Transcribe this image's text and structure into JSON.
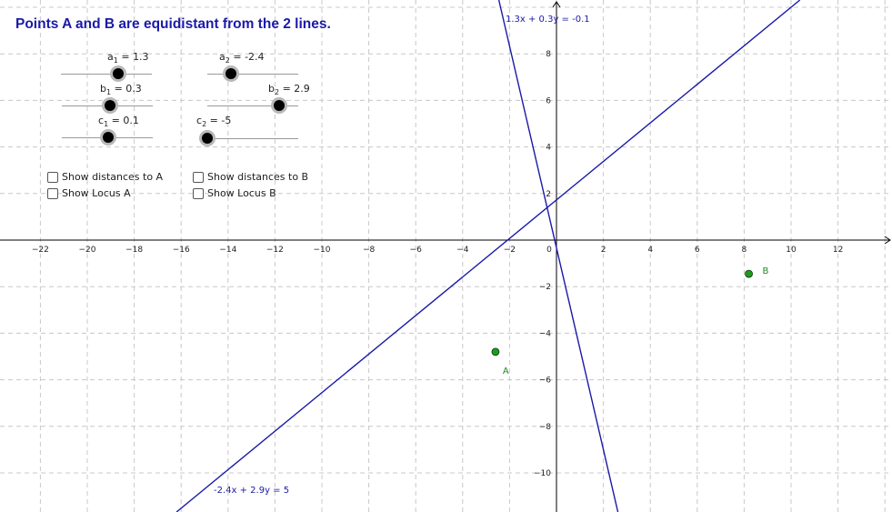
{
  "title": "Points A and B are equidistant from the 2 lines.",
  "sliders": [
    {
      "var": "a",
      "sub": "1",
      "value": "1.3",
      "number": 1.3,
      "min": -5,
      "max": 5
    },
    {
      "var": "a",
      "sub": "2",
      "value": "-2.4",
      "number": -2.4,
      "min": -5,
      "max": 5
    },
    {
      "var": "b",
      "sub": "1",
      "value": "0.3",
      "number": 0.3,
      "min": -5,
      "max": 5
    },
    {
      "var": "b",
      "sub": "2",
      "value": "2.9",
      "number": 2.9,
      "min": -5,
      "max": 5
    },
    {
      "var": "c",
      "sub": "1",
      "value": "0.1",
      "number": 0.1,
      "min": -5,
      "max": 5
    },
    {
      "var": "c",
      "sub": "2",
      "value": "-5",
      "number": -5,
      "min": -5,
      "max": 5
    }
  ],
  "checkboxes": [
    {
      "label": "Show distances to A",
      "checked": false
    },
    {
      "label": "Show distances to B",
      "checked": false
    },
    {
      "label": "Show Locus A",
      "checked": false
    },
    {
      "label": "Show Locus B",
      "checked": false
    }
  ],
  "axes": {
    "x_ticks": [
      "−22",
      "−20",
      "−18",
      "−16",
      "−14",
      "−12",
      "−10",
      "−8",
      "−6",
      "−4",
      "−2",
      "0",
      "2",
      "4",
      "6",
      "8",
      "10",
      "12"
    ],
    "y_ticks_pos": [
      "2",
      "4",
      "6",
      "8"
    ],
    "y_ticks_neg": [
      "−2",
      "−4",
      "−6",
      "−8",
      "−10"
    ]
  },
  "lines": [
    {
      "label": "1.3x + 0.3y = -0.1",
      "a": 1.3,
      "b": 0.3,
      "c": -0.1
    },
    {
      "label": "-2.4x + 2.9y = 5",
      "a": -2.4,
      "b": 2.9,
      "c": 5
    }
  ],
  "points": [
    {
      "name": "A",
      "x": -2.6,
      "y": -4.8
    },
    {
      "name": "B",
      "x": 8.2,
      "y": -1.45
    }
  ],
  "colors": {
    "line": "#1a1aa8",
    "point_fill": "#1f9a1f",
    "point_label": "#1f8a1f",
    "grid": "#c8c8c8",
    "title": "#1a1aa8"
  }
}
